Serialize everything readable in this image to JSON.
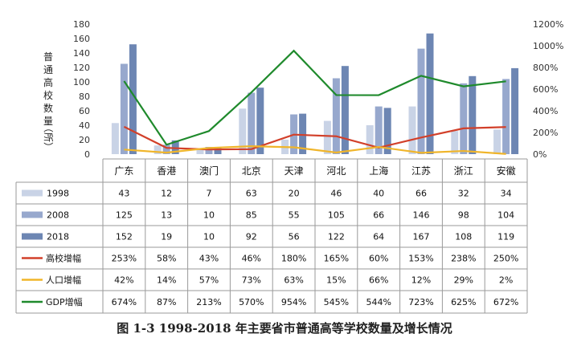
{
  "chart_data": {
    "type": "bar",
    "categories": [
      "广东",
      "香港",
      "澳门",
      "北京",
      "天津",
      "河北",
      "上海",
      "江苏",
      "浙江",
      "安徽"
    ],
    "ylabel": "普通高校数量（所）",
    "ylim": [
      0,
      180
    ],
    "y_ticks": [
      "0",
      "20",
      "40",
      "60",
      "80",
      "100",
      "120",
      "140",
      "160",
      "180"
    ],
    "y2lim": [
      0,
      1200
    ],
    "y2_ticks": [
      "0%",
      "200%",
      "400%",
      "600%",
      "800%",
      "1000%",
      "1200%"
    ],
    "grid": false,
    "legend": "table-below",
    "bar_series": [
      {
        "name": "1998",
        "color": "#c9d3e6",
        "values": [
          43,
          12,
          7,
          63,
          20,
          46,
          40,
          66,
          32,
          34
        ]
      },
      {
        "name": "2008",
        "color": "#97a8cd",
        "values": [
          125,
          13,
          10,
          85,
          55,
          105,
          66,
          146,
          98,
          104
        ]
      },
      {
        "name": "2018",
        "color": "#6d86b3",
        "values": [
          152,
          19,
          10,
          92,
          56,
          122,
          64,
          167,
          108,
          119
        ]
      }
    ],
    "line_series": [
      {
        "name": "高校增幅",
        "color": "#d2402a",
        "values": [
          253,
          58,
          43,
          46,
          180,
          165,
          60,
          153,
          238,
          250
        ]
      },
      {
        "name": "人口增幅",
        "color": "#f0b52a",
        "values": [
          42,
          14,
          57,
          73,
          63,
          15,
          66,
          12,
          29,
          2
        ]
      },
      {
        "name": "GDP增幅",
        "color": "#1f8a2c",
        "values": [
          674,
          87,
          213,
          570,
          954,
          545,
          544,
          723,
          625,
          672
        ]
      }
    ],
    "table_rows": [
      {
        "label": "1998",
        "cells": [
          "43",
          "12",
          "7",
          "63",
          "20",
          "46",
          "40",
          "66",
          "32",
          "34"
        ]
      },
      {
        "label": "2008",
        "cells": [
          "125",
          "13",
          "10",
          "85",
          "55",
          "105",
          "66",
          "146",
          "98",
          "104"
        ]
      },
      {
        "label": "2018",
        "cells": [
          "152",
          "19",
          "10",
          "92",
          "56",
          "122",
          "64",
          "167",
          "108",
          "119"
        ]
      },
      {
        "label": "高校增幅",
        "cells": [
          "253%",
          "58%",
          "43%",
          "46%",
          "180%",
          "165%",
          "60%",
          "153%",
          "238%",
          "250%"
        ]
      },
      {
        "label": "人口增幅",
        "cells": [
          "42%",
          "14%",
          "57%",
          "73%",
          "63%",
          "15%",
          "66%",
          "12%",
          "29%",
          "2%"
        ]
      },
      {
        "label": "GDP增幅",
        "cells": [
          "674%",
          "87%",
          "213%",
          "570%",
          "954%",
          "545%",
          "544%",
          "723%",
          "625%",
          "672%"
        ]
      }
    ]
  },
  "caption": "图 1-3 1998-2018 年主要省市普通高等学校数量及增长情况"
}
